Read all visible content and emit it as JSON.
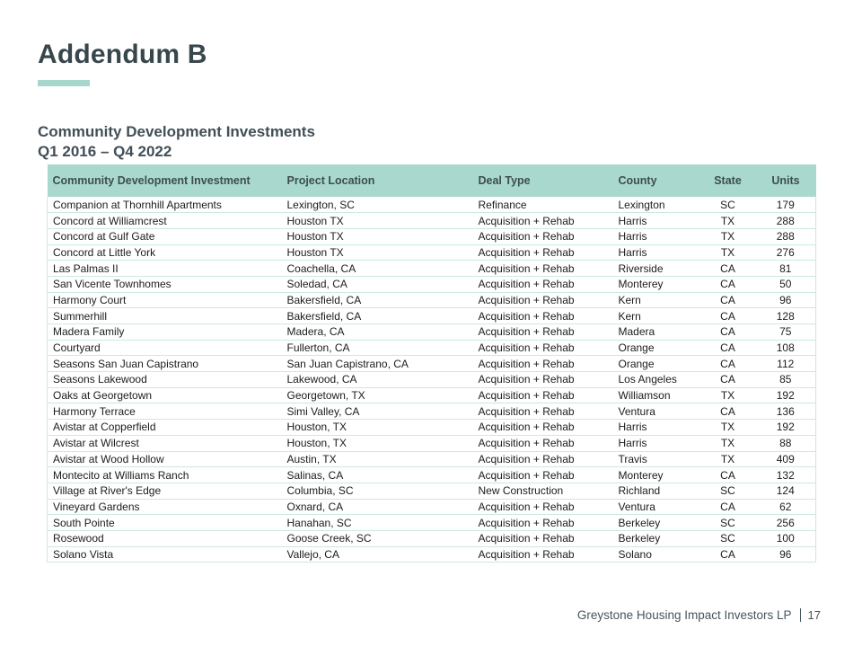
{
  "page": {
    "title": "Addendum B",
    "subtitle_line1": "Community Development Investments",
    "subtitle_line2": "Q1 2016 – Q4 2022",
    "footer": {
      "company": "Greystone Housing Impact Investors LP",
      "page_number": "17"
    }
  },
  "colors": {
    "accent_teal": "#a5d7cd",
    "table_header_bg": "#a9d8cf",
    "table_line": "#cde8e2",
    "title_color": "#37474c",
    "subtitle_color": "#414f57",
    "header_text": "#3d4e50",
    "row_text": "#1c1c1c",
    "footer_color": "#47555d"
  },
  "table": {
    "columns": [
      "Community Development Investment",
      "Project Location",
      "Deal Type",
      "County",
      "State",
      "Units"
    ],
    "column_keys": [
      "investment",
      "project-location",
      "deal-type",
      "county",
      "state",
      "units"
    ],
    "rows": [
      [
        "Companion at Thornhill Apartments",
        "Lexington, SC",
        "Refinance",
        "Lexington",
        "SC",
        "179"
      ],
      [
        "Concord at Williamcrest",
        "Houston TX",
        "Acquisition + Rehab",
        "Harris",
        "TX",
        "288"
      ],
      [
        "Concord at Gulf Gate",
        "Houston TX",
        "Acquisition + Rehab",
        "Harris",
        "TX",
        "288"
      ],
      [
        "Concord at Little York",
        "Houston TX",
        "Acquisition + Rehab",
        "Harris",
        "TX",
        "276"
      ],
      [
        "Las Palmas II",
        "Coachella, CA",
        "Acquisition + Rehab",
        "Riverside",
        "CA",
        "81"
      ],
      [
        "San Vicente Townhomes",
        "Soledad, CA",
        "Acquisition + Rehab",
        "Monterey",
        "CA",
        "50"
      ],
      [
        "Harmony Court",
        "Bakersfield, CA",
        "Acquisition + Rehab",
        "Kern",
        "CA",
        "96"
      ],
      [
        "Summerhill",
        "Bakersfield, CA",
        "Acquisition + Rehab",
        "Kern",
        "CA",
        "128"
      ],
      [
        "Madera Family",
        "Madera, CA",
        "Acquisition + Rehab",
        "Madera",
        "CA",
        "75"
      ],
      [
        "Courtyard",
        "Fullerton, CA",
        "Acquisition + Rehab",
        "Orange",
        "CA",
        "108"
      ],
      [
        "Seasons San Juan Capistrano",
        "San Juan Capistrano, CA",
        "Acquisition + Rehab",
        "Orange",
        "CA",
        "112"
      ],
      [
        "Seasons Lakewood",
        "Lakewood, CA",
        "Acquisition + Rehab",
        "Los Angeles",
        "CA",
        "85"
      ],
      [
        "Oaks at Georgetown",
        "Georgetown, TX",
        "Acquisition + Rehab",
        "Williamson",
        "TX",
        "192"
      ],
      [
        "Harmony Terrace",
        "Simi Valley, CA",
        "Acquisition + Rehab",
        "Ventura",
        "CA",
        "136"
      ],
      [
        "Avistar at Copperfield",
        "Houston, TX",
        "Acquisition + Rehab",
        "Harris",
        "TX",
        "192"
      ],
      [
        "Avistar at Wilcrest",
        "Houston, TX",
        "Acquisition + Rehab",
        "Harris",
        "TX",
        "88"
      ],
      [
        "Avistar at Wood Hollow",
        "Austin, TX",
        "Acquisition + Rehab",
        "Travis",
        "TX",
        "409"
      ],
      [
        "Montecito at Williams Ranch",
        "Salinas, CA",
        "Acquisition + Rehab",
        "Monterey",
        "CA",
        "132"
      ],
      [
        "Village at River's Edge",
        "Columbia, SC",
        "New Construction",
        "Richland",
        "SC",
        "124"
      ],
      [
        "Vineyard Gardens",
        "Oxnard, CA",
        "Acquisition + Rehab",
        "Ventura",
        "CA",
        "62"
      ],
      [
        "South Pointe",
        "Hanahan, SC",
        "Acquisition + Rehab",
        "Berkeley",
        "SC",
        "256"
      ],
      [
        "Rosewood",
        "Goose Creek, SC",
        "Acquisition + Rehab",
        "Berkeley",
        "SC",
        "100"
      ],
      [
        "Solano Vista",
        "Vallejo, CA",
        "Acquisition + Rehab",
        "Solano",
        "CA",
        "96"
      ]
    ]
  }
}
